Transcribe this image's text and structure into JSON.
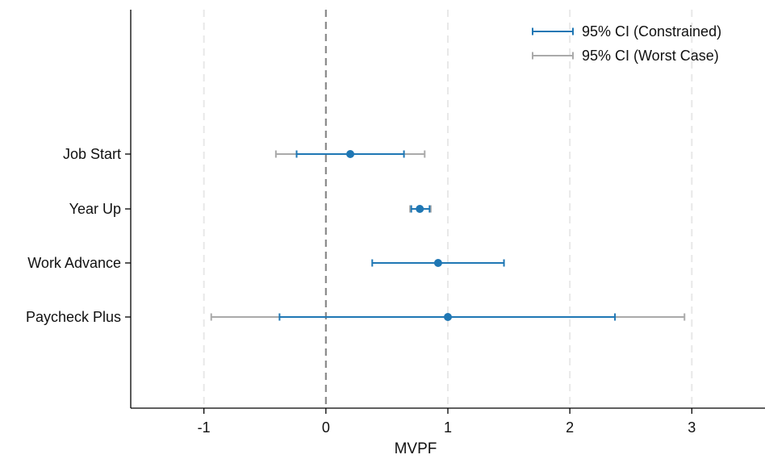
{
  "chart_data": {
    "type": "scatter",
    "subtype": "forest-plot",
    "title": "",
    "xlabel": "MVPF",
    "ylabel": "",
    "xlim": [
      -1.6,
      3.6
    ],
    "xticks": [
      "-1",
      "0",
      "1",
      "2",
      "3"
    ],
    "xtick_values": [
      -1,
      0,
      1,
      2,
      3
    ],
    "grid": "vertical-dashed",
    "reference_line": 0,
    "legend_position": "top-right",
    "legend": [
      {
        "label": "95% CI (Constrained)",
        "color": "#1f77b4"
      },
      {
        "label": "95% CI (Worst Case)",
        "color": "#aaaaaa"
      }
    ],
    "categories": [
      "Job Start",
      "Year Up",
      "Work Advance",
      "Paycheck Plus"
    ],
    "points": [
      {
        "label": "Job Start",
        "estimate": 0.2,
        "ci_constrained": [
          -0.24,
          0.64
        ],
        "ci_worst": [
          -0.41,
          0.81
        ]
      },
      {
        "label": "Year Up",
        "estimate": 0.77,
        "ci_constrained": [
          0.7,
          0.85
        ],
        "ci_worst": [
          0.69,
          0.86
        ]
      },
      {
        "label": "Work Advance",
        "estimate": 0.92,
        "ci_constrained": [
          0.38,
          1.46
        ],
        "ci_worst": null
      },
      {
        "label": "Paycheck Plus",
        "estimate": 1.0,
        "ci_constrained": [
          -0.38,
          2.37
        ],
        "ci_worst": [
          -0.94,
          2.94
        ]
      }
    ],
    "colors": {
      "constrained": "#1f77b4",
      "worst": "#aaaaaa",
      "zero_line": "#8a8a8a",
      "grid": "#e8e8e8"
    }
  }
}
